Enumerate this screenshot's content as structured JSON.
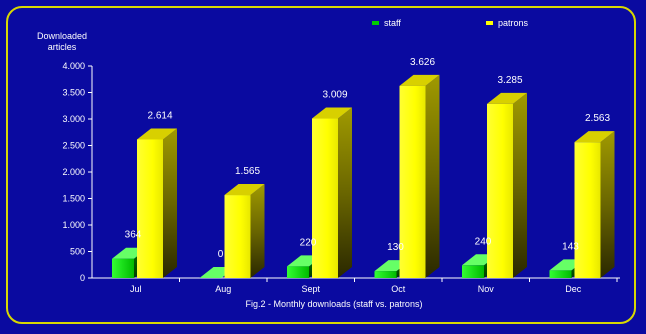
{
  "chart_data": {
    "type": "bar",
    "title": "Fig.2 - Monthly downloads (staff  vs. patrons)",
    "ylabel_lines": [
      "Downloaded",
      "articles"
    ],
    "xlabel": "",
    "categories": [
      "Jul",
      "Aug",
      "Sept",
      "Oct",
      "Nov",
      "Dec"
    ],
    "series": [
      {
        "name": "staff",
        "values": [
          364,
          0,
          220,
          130,
          240,
          143
        ],
        "labels": [
          "364",
          "0",
          "220",
          "130",
          "240",
          "143"
        ],
        "color": "#00cc00"
      },
      {
        "name": "patrons",
        "values": [
          2614,
          1565,
          3009,
          3626,
          3285,
          2563
        ],
        "labels": [
          "2.614",
          "1.565",
          "3.009",
          "3.626",
          "3.285",
          "2.563"
        ],
        "color": "#ffff00"
      }
    ],
    "ylim": [
      0,
      4000
    ],
    "yticks": [
      0,
      500,
      1000,
      1500,
      2000,
      2500,
      3000,
      3500,
      4000
    ],
    "ytick_labels": [
      "0",
      "500",
      "1.000",
      "1.500",
      "2.000",
      "2.500",
      "3.000",
      "3.500",
      "4.000"
    ],
    "grid": false,
    "legend_position": "top-right",
    "background_color": "#0a0aa0",
    "border_color": "#d8d800"
  }
}
